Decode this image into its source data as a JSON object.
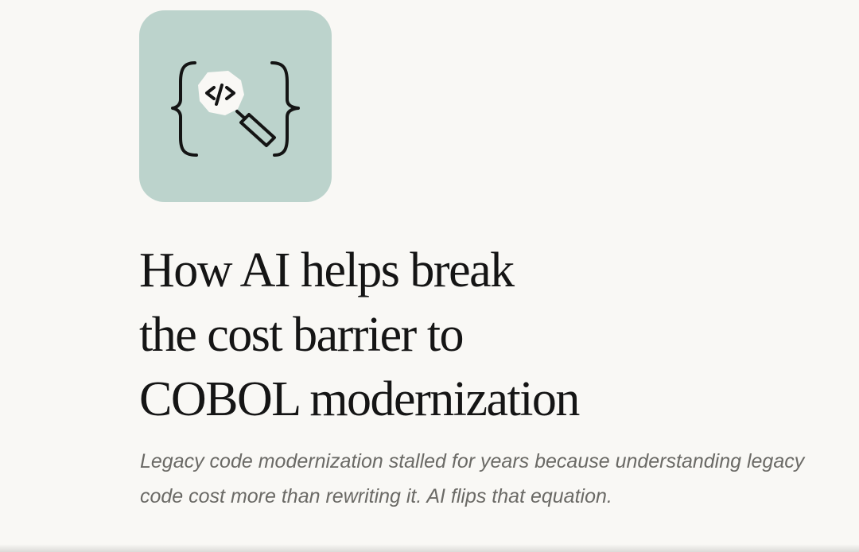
{
  "article": {
    "icon": "code-magnifier-icon",
    "icon_background": "#bcd3cc",
    "title_lines": [
      "How AI helps break",
      "the cost barrier to",
      "COBOL modernization"
    ],
    "subtitle": "Legacy code modernization stalled for years because understanding legacy code cost more than rewriting it. AI flips that equation."
  }
}
